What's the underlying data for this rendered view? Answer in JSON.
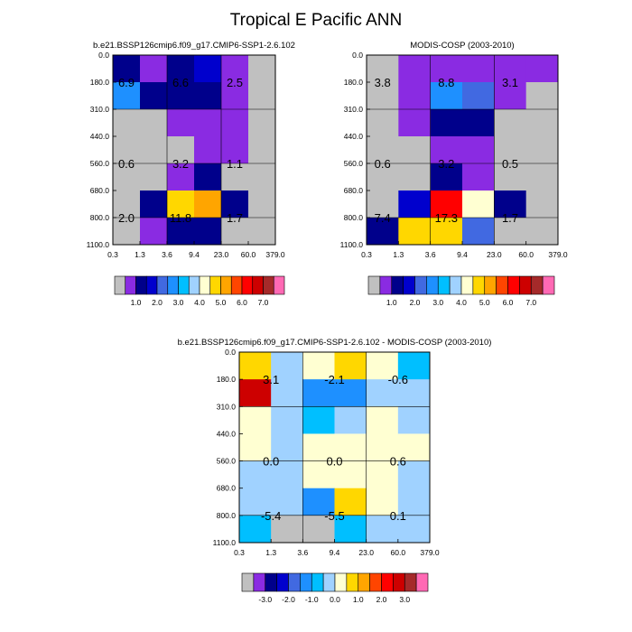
{
  "figure": {
    "title": "Tropical E Pacific ANN"
  },
  "palettes": {
    "absolute": [
      "#c0c0c0",
      "#8a2be2",
      "#00008b",
      "#0000cd",
      "#4169e1",
      "#1e90ff",
      "#00bfff",
      "#a0d2ff",
      "#ffffd2",
      "#ffd700",
      "#ffa500",
      "#ff4500",
      "#ff0000",
      "#cd0000",
      "#a52a2a",
      "#ff69b4"
    ],
    "difference": [
      "#c0c0c0",
      "#8a2be2",
      "#00008b",
      "#0000cd",
      "#4169e1",
      "#1e90ff",
      "#00bfff",
      "#a0d2ff",
      "#ffffd2",
      "#ffd700",
      "#ffa500",
      "#ff4500",
      "#ff0000",
      "#cd0000",
      "#a52a2a",
      "#ff69b4"
    ]
  },
  "chart_data": [
    {
      "type": "heatmap",
      "title": "b.e21.BSSP126cmip6.f09_g17.CMIP6-SSP1-2.6.102",
      "x_ticks": [
        "0.3",
        "1.3",
        "3.6",
        "9.4",
        "23.0",
        "60.0",
        "379.0"
      ],
      "y_ticks": [
        "0.0",
        "180.0",
        "310.0",
        "440.0",
        "560.0",
        "680.0",
        "800.0",
        "1100.0"
      ],
      "colorbar_labels": [
        "1.0",
        "2.0",
        "3.0",
        "4.0",
        "5.0",
        "6.0",
        "7.0"
      ],
      "grid": true,
      "cell_colors": [
        [
          2,
          1,
          2,
          3,
          1,
          0
        ],
        [
          5,
          2,
          2,
          2,
          1,
          0
        ],
        [
          0,
          0,
          1,
          1,
          1,
          0
        ],
        [
          0,
          0,
          0,
          1,
          1,
          0
        ],
        [
          0,
          0,
          1,
          2,
          0,
          0
        ],
        [
          0,
          2,
          9,
          10,
          2,
          0
        ],
        [
          0,
          1,
          2,
          2,
          0,
          0
        ]
      ],
      "annotations": [
        {
          "value": "6.9",
          "col": 0.5,
          "row": 1.0
        },
        {
          "value": "6.6",
          "col": 2.5,
          "row": 1.0
        },
        {
          "value": "2.5",
          "col": 4.5,
          "row": 1.0
        },
        {
          "value": "0.6",
          "col": 0.5,
          "row": 4.0
        },
        {
          "value": "3.2",
          "col": 2.5,
          "row": 4.0
        },
        {
          "value": "1.1",
          "col": 4.5,
          "row": 4.0
        },
        {
          "value": "2.0",
          "col": 0.5,
          "row": 6.0
        },
        {
          "value": "11.8",
          "col": 2.5,
          "row": 6.0
        },
        {
          "value": "1.7",
          "col": 4.5,
          "row": 6.0
        }
      ]
    },
    {
      "type": "heatmap",
      "title": "MODIS-COSP (2003-2010)",
      "x_ticks": [
        "0.3",
        "1.3",
        "3.6",
        "9.4",
        "23.0",
        "60.0",
        "379.0"
      ],
      "y_ticks": [
        "0.0",
        "180.0",
        "310.0",
        "440.0",
        "560.0",
        "680.0",
        "800.0",
        "1100.0"
      ],
      "colorbar_labels": [
        "1.0",
        "2.0",
        "3.0",
        "4.0",
        "5.0",
        "6.0",
        "7.0"
      ],
      "grid": true,
      "cell_colors": [
        [
          0,
          1,
          1,
          1,
          1,
          1
        ],
        [
          0,
          1,
          5,
          4,
          1,
          0
        ],
        [
          0,
          1,
          2,
          2,
          0,
          0
        ],
        [
          0,
          0,
          1,
          1,
          0,
          0
        ],
        [
          0,
          0,
          2,
          1,
          0,
          0
        ],
        [
          0,
          3,
          12,
          8,
          2,
          0
        ],
        [
          2,
          9,
          9,
          4,
          0,
          0
        ]
      ],
      "annotations": [
        {
          "value": "3.8",
          "col": 0.5,
          "row": 1.0
        },
        {
          "value": "8.8",
          "col": 2.5,
          "row": 1.0
        },
        {
          "value": "3.1",
          "col": 4.5,
          "row": 1.0
        },
        {
          "value": "0.6",
          "col": 0.5,
          "row": 4.0
        },
        {
          "value": "3.2",
          "col": 2.5,
          "row": 4.0
        },
        {
          "value": "0.5",
          "col": 4.5,
          "row": 4.0
        },
        {
          "value": "7.4",
          "col": 0.5,
          "row": 6.0
        },
        {
          "value": "17.3",
          "col": 2.5,
          "row": 6.0
        },
        {
          "value": "1.7",
          "col": 4.5,
          "row": 6.0
        }
      ]
    },
    {
      "type": "heatmap",
      "title": "b.e21.BSSP126cmip6.f09_g17.CMIP6-SSP1-2.6.102 - MODIS-COSP (2003-2010)",
      "x_ticks": [
        "0.3",
        "1.3",
        "3.6",
        "9.4",
        "23.0",
        "60.0",
        "379.0"
      ],
      "y_ticks": [
        "0.0",
        "180.0",
        "310.0",
        "440.0",
        "560.0",
        "680.0",
        "800.0",
        "1100.0"
      ],
      "colorbar_labels": [
        "-3.0",
        "-2.0",
        "-1.0",
        "0.0",
        "1.0",
        "2.0",
        "3.0"
      ],
      "grid": true,
      "cell_colors": [
        [
          9,
          7,
          8,
          9,
          8,
          6
        ],
        [
          13,
          7,
          5,
          5,
          7,
          7
        ],
        [
          8,
          7,
          6,
          7,
          8,
          7
        ],
        [
          8,
          7,
          8,
          8,
          8,
          8
        ],
        [
          7,
          7,
          8,
          8,
          8,
          7
        ],
        [
          7,
          7,
          5,
          9,
          8,
          7
        ],
        [
          6,
          0,
          0,
          6,
          7,
          7
        ]
      ],
      "annotations": [
        {
          "value": "3.1",
          "col": 1.0,
          "row": 1.0
        },
        {
          "value": "-2.1",
          "col": 3.0,
          "row": 1.0
        },
        {
          "value": "-0.6",
          "col": 5.0,
          "row": 1.0
        },
        {
          "value": "0.0",
          "col": 1.0,
          "row": 4.0
        },
        {
          "value": "0.0",
          "col": 3.0,
          "row": 4.0
        },
        {
          "value": "0.6",
          "col": 5.0,
          "row": 4.0
        },
        {
          "value": "-5.4",
          "col": 1.0,
          "row": 6.0
        },
        {
          "value": "-5.5",
          "col": 3.0,
          "row": 6.0
        },
        {
          "value": "0.1",
          "col": 5.0,
          "row": 6.0
        }
      ]
    }
  ]
}
